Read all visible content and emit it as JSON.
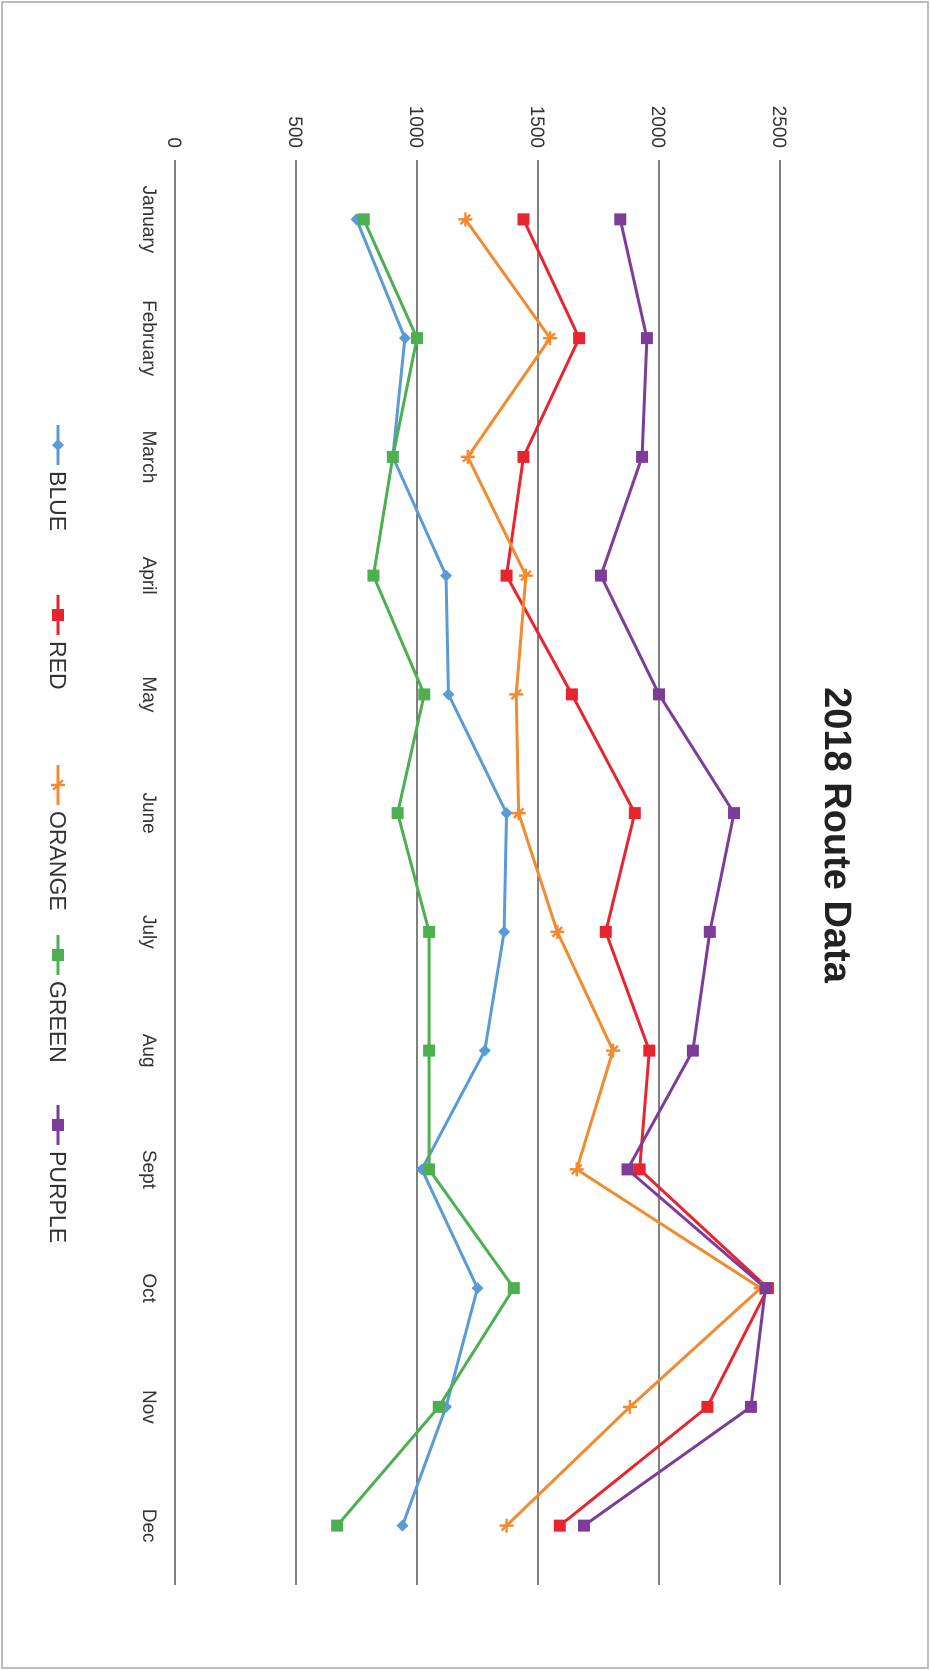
{
  "chart_data": {
    "type": "line",
    "title": "2018 Route Data",
    "categories": [
      "January",
      "February",
      "March",
      "April",
      "May",
      "June",
      "July",
      "Aug",
      "Sept",
      "Oct",
      "Nov",
      "Dec"
    ],
    "ylim": [
      0,
      2500
    ],
    "yticks": [
      "0",
      "500",
      "1000",
      "1500",
      "2000",
      "2500"
    ],
    "grid": true,
    "legend_position": "bottom",
    "series": [
      {
        "name": "BLUE",
        "color": "#5b9bd5",
        "marker": "diamond",
        "values": [
          750,
          950,
          900,
          1120,
          1130,
          1370,
          1360,
          1280,
          1020,
          1250,
          1120,
          940
        ]
      },
      {
        "name": "RED",
        "color": "#e8242f",
        "marker": "square",
        "values": [
          1440,
          1670,
          1440,
          1370,
          1640,
          1900,
          1780,
          1960,
          1920,
          2450,
          2200,
          1590
        ]
      },
      {
        "name": "ORANGE",
        "color": "#f28a30",
        "marker": "star",
        "values": [
          1200,
          1550,
          1210,
          1450,
          1410,
          1420,
          1580,
          1810,
          1660,
          2420,
          1880,
          1370
        ]
      },
      {
        "name": "GREEN",
        "color": "#4caf50",
        "marker": "square",
        "values": [
          780,
          1000,
          900,
          820,
          1030,
          920,
          1050,
          1050,
          1050,
          1400,
          1090,
          670
        ]
      },
      {
        "name": "PURPLE",
        "color": "#7d3c98",
        "marker": "square",
        "values": [
          1840,
          1950,
          1930,
          1760,
          2000,
          2310,
          2210,
          2140,
          1870,
          2440,
          2380,
          1690
        ]
      }
    ]
  }
}
